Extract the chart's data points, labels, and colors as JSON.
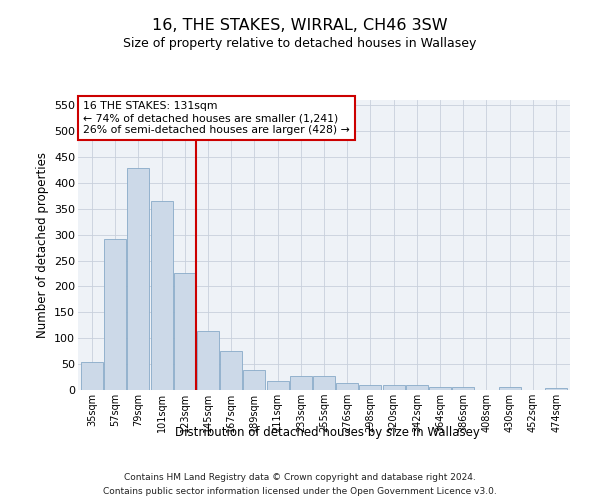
{
  "title": "16, THE STAKES, WIRRAL, CH46 3SW",
  "subtitle": "Size of property relative to detached houses in Wallasey",
  "xlabel": "Distribution of detached houses by size in Wallasey",
  "ylabel": "Number of detached properties",
  "footer_line1": "Contains HM Land Registry data © Crown copyright and database right 2024.",
  "footer_line2": "Contains public sector information licensed under the Open Government Licence v3.0.",
  "bar_color": "#ccd9e8",
  "bar_edge_color": "#88aac8",
  "grid_color": "#c8d0dc",
  "annotation_box_color": "#cc0000",
  "vline_color": "#cc0000",
  "categories": [
    "35sqm",
    "57sqm",
    "79sqm",
    "101sqm",
    "123sqm",
    "145sqm",
    "167sqm",
    "189sqm",
    "211sqm",
    "233sqm",
    "255sqm",
    "276sqm",
    "298sqm",
    "320sqm",
    "342sqm",
    "364sqm",
    "386sqm",
    "408sqm",
    "430sqm",
    "452sqm",
    "474sqm"
  ],
  "values": [
    55,
    291,
    428,
    365,
    225,
    113,
    76,
    38,
    18,
    27,
    27,
    14,
    9,
    9,
    9,
    5,
    5,
    0,
    5,
    0,
    4
  ],
  "ylim": [
    0,
    560
  ],
  "yticks": [
    0,
    50,
    100,
    150,
    200,
    250,
    300,
    350,
    400,
    450,
    500,
    550
  ],
  "annotation_line1": "16 THE STAKES: 131sqm",
  "annotation_line2": "← 74% of detached houses are smaller (1,241)",
  "annotation_line3": "26% of semi-detached houses are larger (428) →",
  "vline_position": 4.5,
  "background_color": "#eef2f7"
}
